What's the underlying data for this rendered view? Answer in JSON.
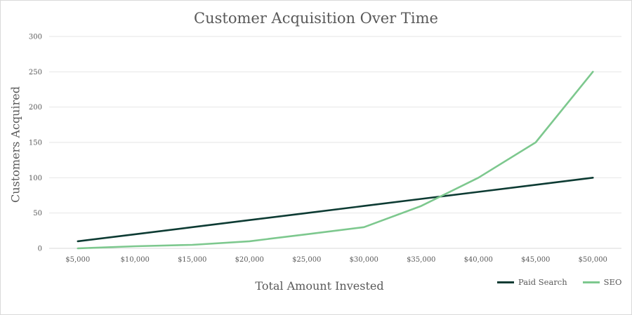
{
  "chart_data": {
    "type": "line",
    "title": "Customer Acquisition Over Time",
    "xlabel": "Total Amount Invested",
    "ylabel": "Customers Acquired",
    "categories": [
      "$5,000",
      "$10,000",
      "$15,000",
      "$20,000",
      "$25,000",
      "$30,000",
      "$35,000",
      "$40,000",
      "$45,000",
      "$50,000"
    ],
    "ylim": [
      0,
      300
    ],
    "yticks": [
      "0",
      "50",
      "100",
      "150",
      "200",
      "250",
      "300"
    ],
    "grid": true,
    "legend_position": "bottom-right",
    "series": [
      {
        "name": "Paid Search",
        "color": "#0d3b33",
        "values": [
          10,
          20,
          30,
          40,
          50,
          60,
          70,
          80,
          90,
          100
        ]
      },
      {
        "name": "SEO",
        "color": "#7dc88e",
        "values": [
          0,
          3,
          5,
          10,
          20,
          30,
          60,
          100,
          150,
          250
        ]
      }
    ]
  }
}
